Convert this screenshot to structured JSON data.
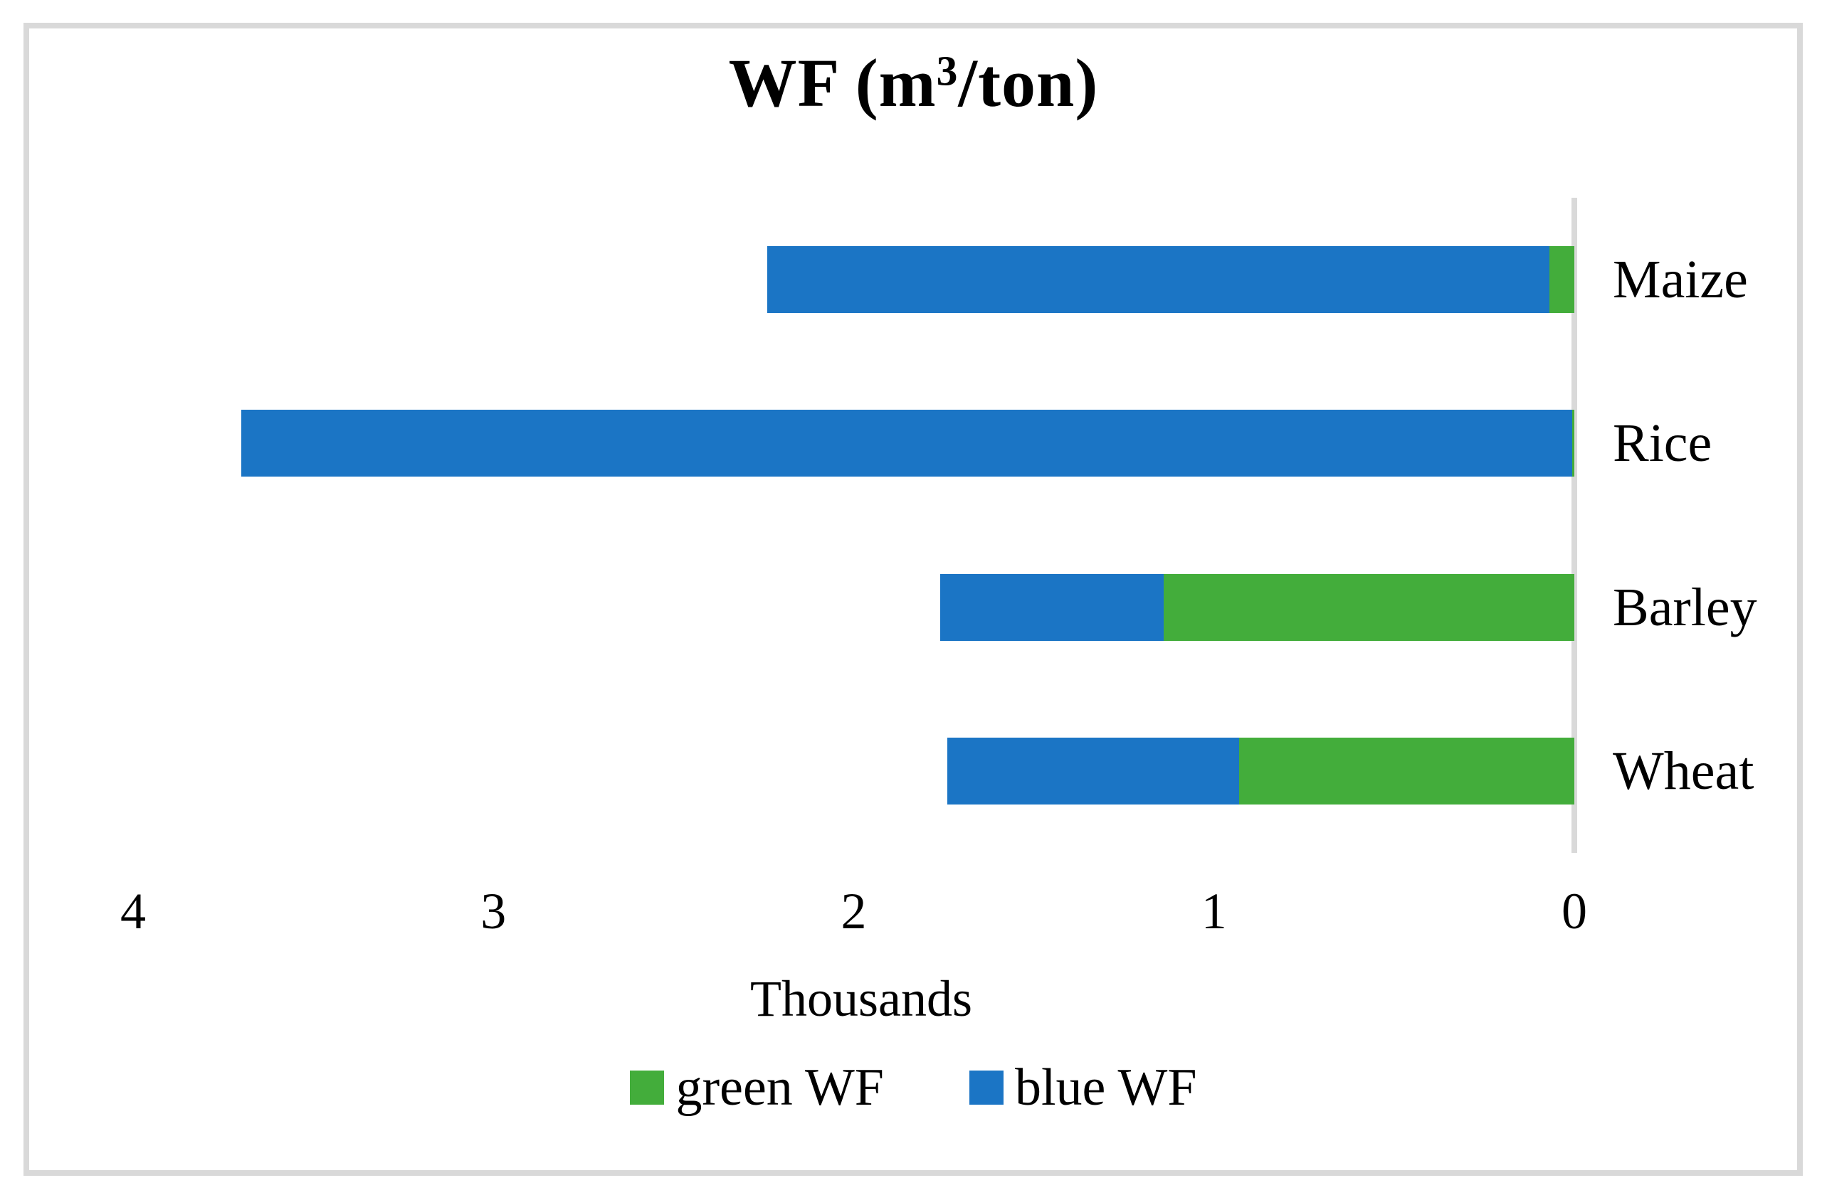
{
  "figure": {
    "title": {
      "before_sup": "WF (m",
      "sup": "3",
      "after_sup": "/ton)"
    }
  },
  "chart_data": {
    "type": "bar",
    "orientation": "horizontal-stacked",
    "title": "WF (m3/ton)",
    "unit": "m3/ton",
    "categories": [
      "Maize",
      "Rice",
      "Barley",
      "Wheat"
    ],
    "series": [
      {
        "name": "green WF",
        "color": "#43AD3B",
        "values": [
          70,
          5,
          1140,
          930
        ]
      },
      {
        "name": "blue WF",
        "color": "#1B75C5",
        "values": [
          2170,
          3695,
          620,
          810
        ]
      }
    ],
    "totals": [
      2240,
      3700,
      1760,
      1740
    ],
    "x_axis": {
      "label": "Thousands",
      "ticks": [
        4,
        3,
        2,
        1,
        0
      ],
      "range": [
        0,
        4
      ],
      "reversed": true,
      "unit_scale": 1000
    },
    "legend": {
      "position": "bottom",
      "entries": [
        "green WF",
        "blue WF"
      ]
    },
    "grid": false,
    "colors": {
      "axis_and_frame": "#D9D9D9",
      "text": "#000000",
      "background": "#FFFFFF"
    }
  }
}
